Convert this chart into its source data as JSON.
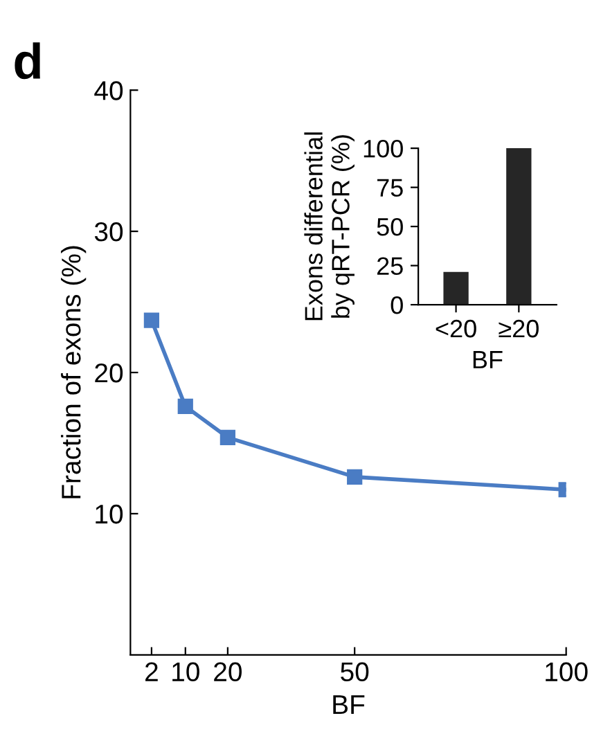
{
  "chart_data": [
    {
      "type": "line",
      "title": "d",
      "xlabel": "BF",
      "ylabel": "Fraction of exons (%)",
      "x": [
        2,
        10,
        20,
        50,
        100
      ],
      "series": [
        {
          "color": "#4a7cc4",
          "values": [
            23.7,
            17.6,
            15.4,
            12.6,
            11.7
          ]
        }
      ],
      "xlim": [
        -3,
        100
      ],
      "xticks": [
        2,
        10,
        20,
        50,
        100
      ],
      "ylim": [
        0,
        40
      ],
      "yticks": [
        10,
        20,
        30,
        40
      ],
      "marker": "square",
      "line_style": "solid"
    },
    {
      "type": "bar",
      "xlabel": "BF",
      "ylabel": "Exons differential\nby qRT-PCR (%)",
      "categories": [
        "<20",
        "≥20"
      ],
      "series": [
        {
          "color": "#262626",
          "values": [
            21,
            100
          ]
        }
      ],
      "ylim": [
        0,
        100
      ],
      "yticks": [
        0,
        25,
        50,
        75,
        100
      ]
    }
  ]
}
